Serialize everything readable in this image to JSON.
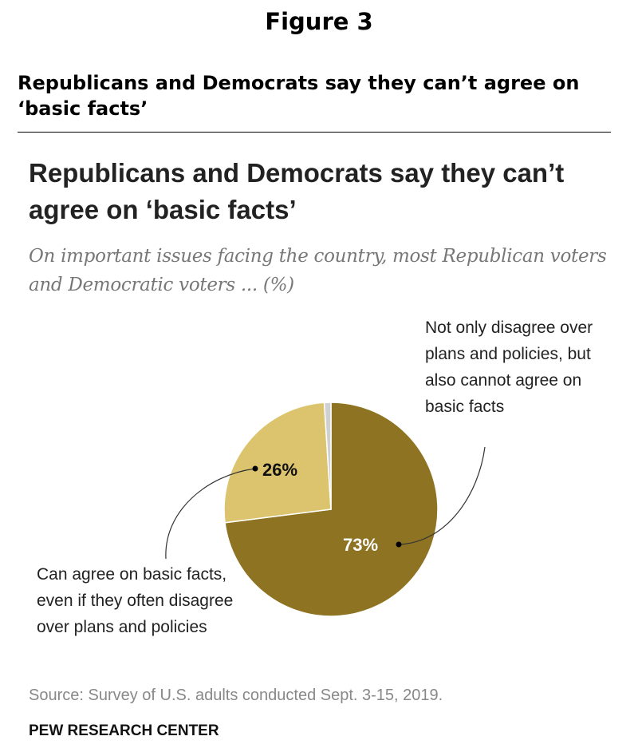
{
  "figure_label": "Figure 3",
  "header_title": "Republicans and Democrats say they can’t agree on ‘basic facts’",
  "chart_data": {
    "type": "pie",
    "title": "Republicans and Democrats say they can’t agree on ‘basic facts’",
    "subtitle": "On important issues facing the country, most Republican voters and Democratic voters ... (%)",
    "slices": [
      {
        "label": "Not only disagree over plans and policies, but also cannot agree on basic facts",
        "value": 73,
        "value_label": "73%",
        "color": "#8e7322"
      },
      {
        "label": "Can agree on basic facts, even if they often disagree over plans and policies",
        "value": 26,
        "value_label": "26%",
        "color": "#dcc46e"
      },
      {
        "label": "",
        "value": 1,
        "color": "#cfd0d2"
      }
    ],
    "source": "Source: Survey of U.S. adults conducted Sept. 3-15, 2019.",
    "credit": "PEW RESEARCH CENTER"
  }
}
